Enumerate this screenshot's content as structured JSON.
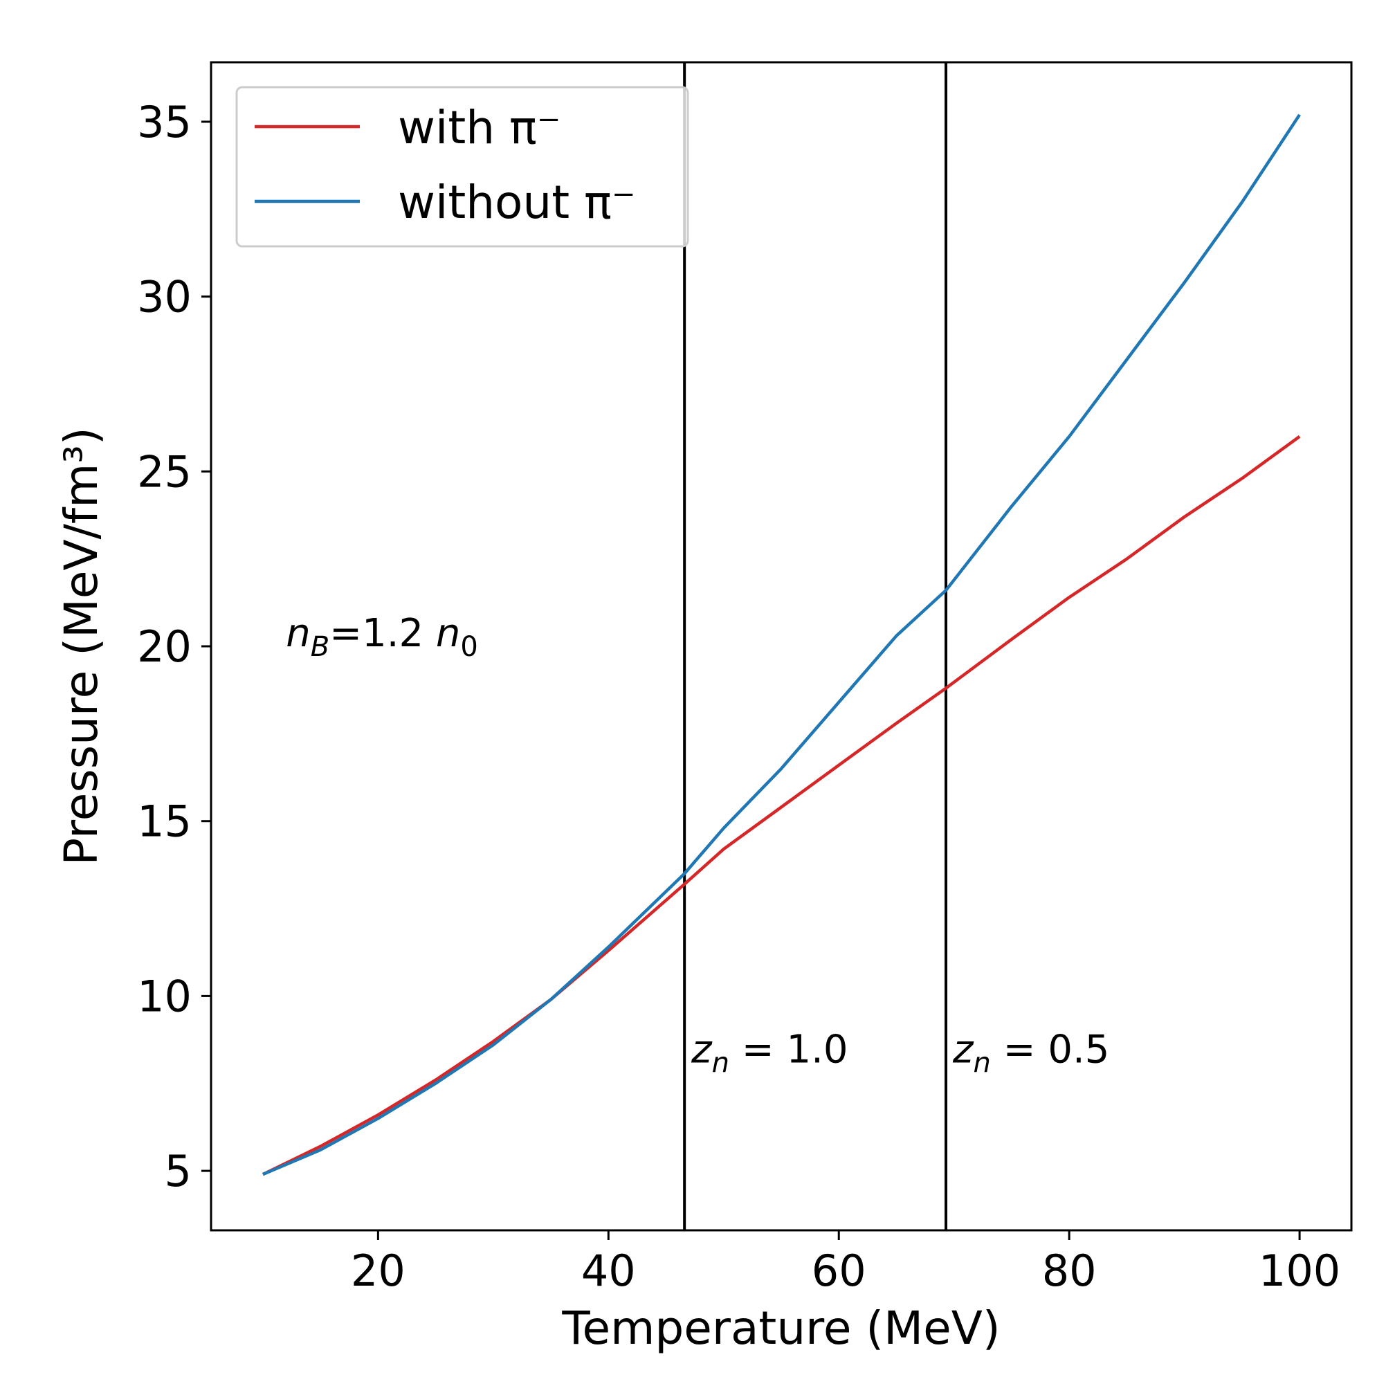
{
  "chart_data": {
    "type": "line",
    "title": "",
    "xlabel": "Temperature (MeV)",
    "ylabel": "Pressure (MeV/fm³)",
    "xlim": [
      5.5,
      104.5
    ],
    "ylim": [
      3.3,
      36.7
    ],
    "xticks": [
      20,
      40,
      60,
      80,
      100
    ],
    "yticks": [
      5,
      10,
      15,
      20,
      25,
      30,
      35
    ],
    "grid": false,
    "legend_position": "top-left",
    "series": [
      {
        "name": "with π⁻",
        "color": "#d62728",
        "x": [
          10,
          15,
          20,
          25,
          30,
          35,
          40,
          46.6,
          50,
          55,
          60,
          65,
          69.3,
          75,
          80,
          85,
          90,
          95,
          100
        ],
        "y": [
          4.9,
          5.7,
          6.6,
          7.6,
          8.7,
          9.9,
          11.3,
          13.2,
          14.2,
          15.4,
          16.6,
          17.8,
          18.8,
          20.2,
          21.4,
          22.5,
          23.7,
          24.8,
          26.0
        ]
      },
      {
        "name": "without π⁻",
        "color": "#1f77b4",
        "x": [
          10,
          15,
          20,
          25,
          30,
          35,
          40,
          46.6,
          50,
          55,
          60,
          65,
          69.3,
          75,
          80,
          85,
          90,
          95,
          100
        ],
        "y": [
          4.9,
          5.6,
          6.5,
          7.5,
          8.6,
          9.9,
          11.4,
          13.5,
          14.8,
          16.5,
          18.4,
          20.3,
          21.6,
          24.0,
          26.0,
          28.2,
          30.4,
          32.7,
          35.2
        ]
      }
    ],
    "vlines": [
      {
        "x": 46.6,
        "label_var": "z",
        "label_sub": "n",
        "label_rest": " = 1.0",
        "label_y": 8.1
      },
      {
        "x": 69.3,
        "label_var": "z",
        "label_sub": "n",
        "label_rest": " = 0.5",
        "label_y": 8.1
      }
    ],
    "annotation": {
      "var1": "n",
      "sub1": "B",
      "mid": "=1.2 ",
      "var2": "n",
      "sub2": "0",
      "x": 12,
      "y": 20
    }
  }
}
